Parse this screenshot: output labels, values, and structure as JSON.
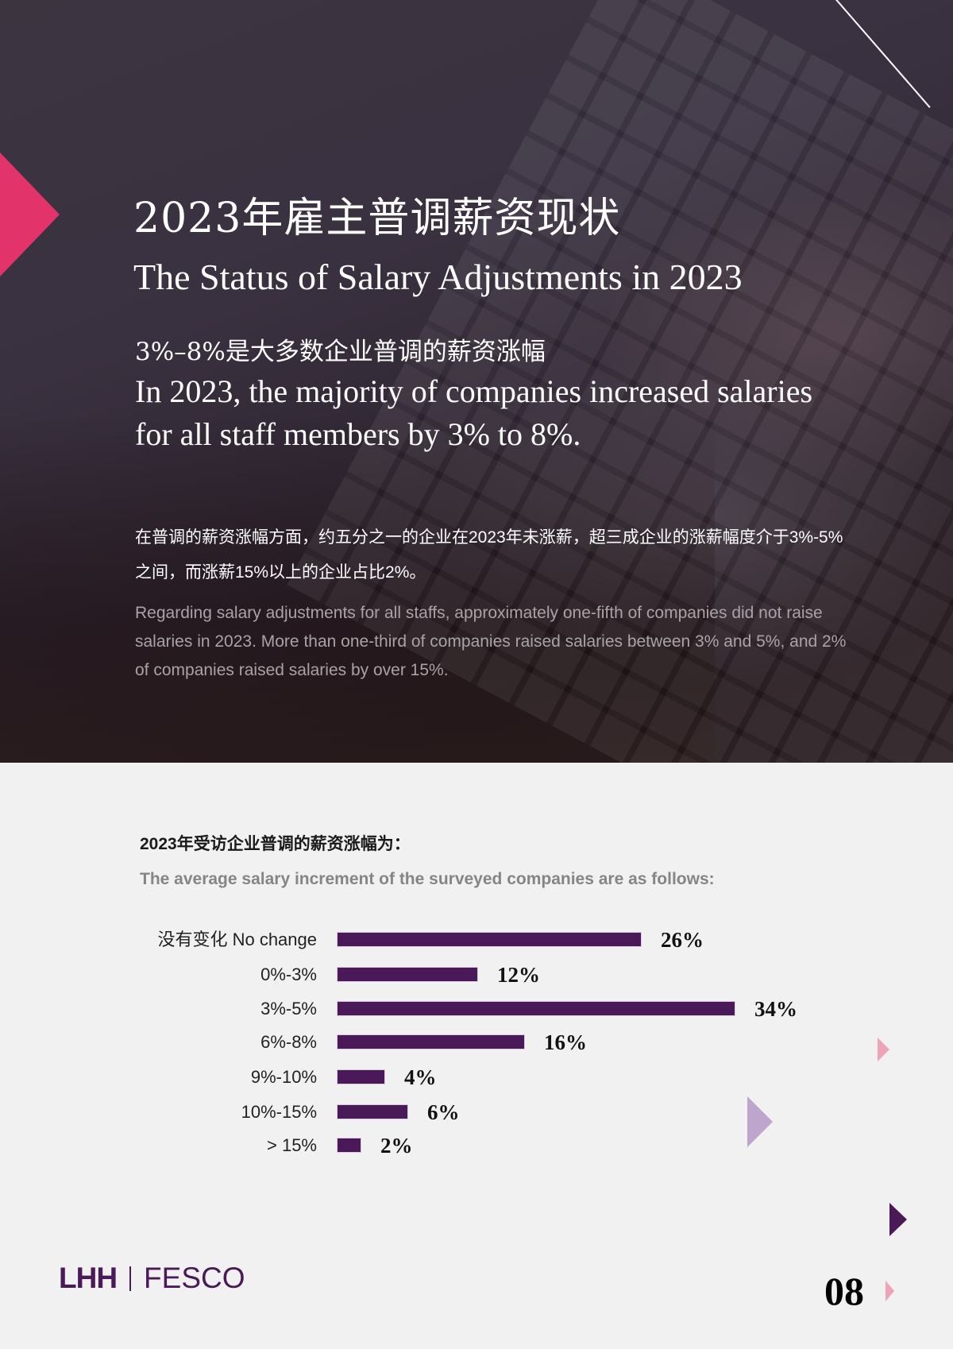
{
  "hero": {
    "title_zh": "2023年雇主普调薪资现状",
    "title_en": "The Status of Salary Adjustments in 2023",
    "subtitle_zh": "3%–8%是大多数企业普调的薪资涨幅",
    "subtitle_en": "In 2023, the majority of companies increased salaries for all staff members by 3% to 8%.",
    "body_zh": "在普调的薪资涨幅方面，约五分之一的企业在2023年未涨薪，超三成企业的涨薪幅度介于3%-5%之间，而涨薪15%以上的企业占比2%。",
    "body_en": "Regarding salary adjustments for all staffs, approximately one-fifth of companies did not raise salaries in 2023. More than one-third of companies raised salaries between 3% and 5%, and 2% of companies raised salaries by over 15%."
  },
  "chart_section": {
    "title_zh": "2023年受访企业普调的薪资涨幅为：",
    "title_en": "The average salary increment of the surveyed companies are as follows:"
  },
  "chart_data": {
    "type": "bar",
    "orientation": "horizontal",
    "title": "2023年受访企业普调的薪资涨幅为： / The average salary increment of the surveyed companies are as follows:",
    "categories": [
      "没有变化 No change",
      "0%-3%",
      "3%-5%",
      "6%-8%",
      "9%-10%",
      "10%-15%",
      "> 15%"
    ],
    "values": [
      26,
      12,
      34,
      16,
      4,
      6,
      2
    ],
    "value_labels": [
      "26%",
      "12%",
      "34%",
      "16%",
      "4%",
      "6%",
      "2%"
    ],
    "unit": "%",
    "xlabel": "",
    "ylabel": "",
    "xlim": [
      0,
      34
    ],
    "grid": false,
    "legend": null,
    "bar_color": "#4a1957"
  },
  "rows": [
    {
      "label": "没有变化 No change",
      "value": "26%"
    },
    {
      "label": "0%-3%",
      "value": "12%"
    },
    {
      "label": "3%-5%",
      "value": "34%"
    },
    {
      "label": "6%-8%",
      "value": "16%"
    },
    {
      "label": "9%-10%",
      "value": "4%"
    },
    {
      "label": "10%-15%",
      "value": "6%"
    },
    {
      "label": "> 15%",
      "value": "2%"
    }
  ],
  "footer": {
    "logo_left": "LHH",
    "logo_right": "FESCO",
    "page_number": "08"
  },
  "colors": {
    "accent_pink": "#e3336b",
    "brand_purple": "#4a1957",
    "lilac": "#bea5cc",
    "soft_pink": "#f0a3b7",
    "background": "#f2f1f2"
  }
}
